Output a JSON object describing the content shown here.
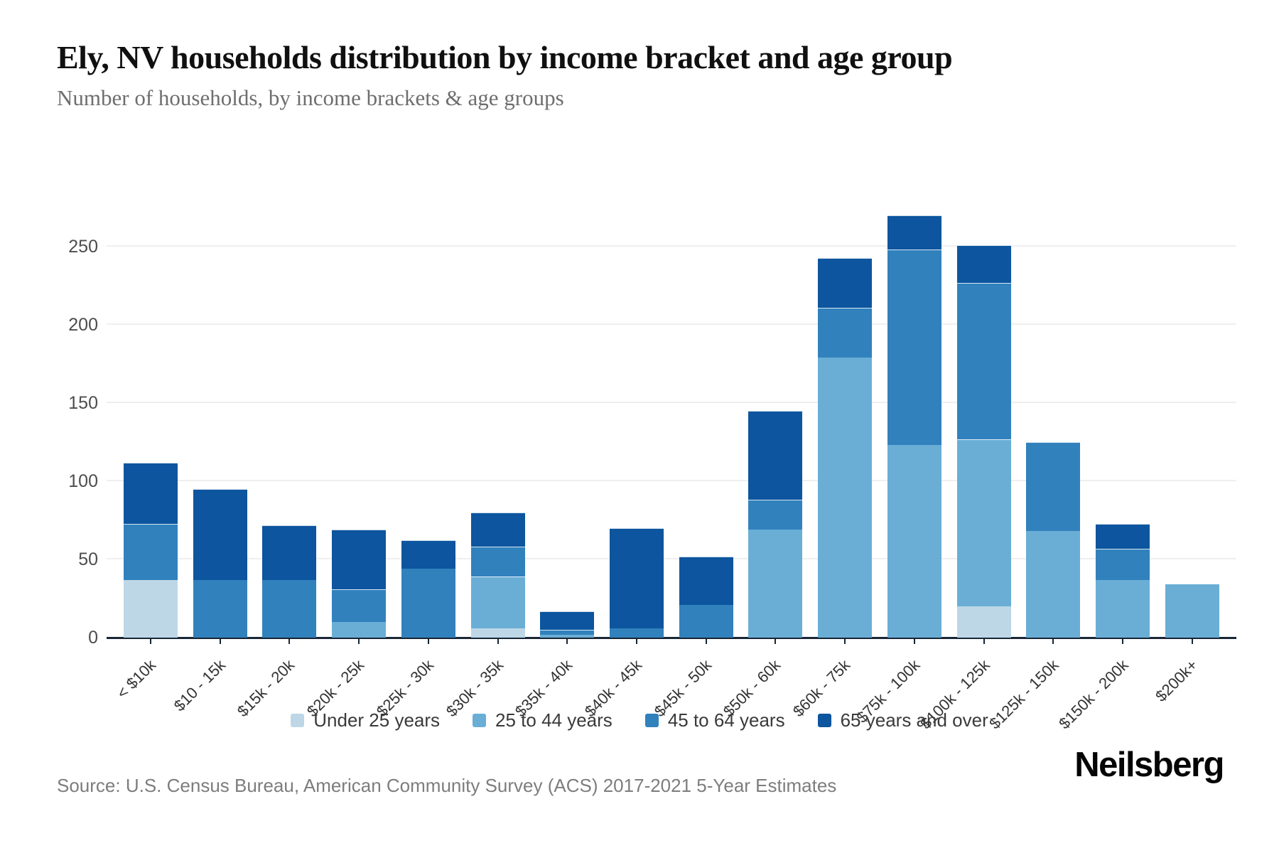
{
  "header": {
    "title": "Ely, NV households distribution by income bracket and age group",
    "subtitle": "Number of households, by income brackets & age groups"
  },
  "footer": {
    "source": "Source: U.S. Census Bureau, American Community Survey (ACS) 2017-2021 5-Year Estimates",
    "logo": "Neilsberg"
  },
  "colors": {
    "under_25": "#bdd7e6",
    "age_25_44": "#6aaed6",
    "age_45_64": "#3181bd",
    "age_65_over": "#0d559e",
    "axis": "#182635",
    "gridline": "#efefef"
  },
  "chart_data": {
    "type": "bar",
    "stacked": true,
    "title": "Ely, NV households distribution by income bracket and age group",
    "xlabel": "",
    "ylabel": "Number of households",
    "ylim": [
      0,
      300
    ],
    "yticks": [
      0,
      50,
      100,
      150,
      200,
      250
    ],
    "grid": true,
    "legend_position": "bottom",
    "categories": [
      "< $10k",
      "$10 - 15k",
      "$15k - 20k",
      "$20k - 25k",
      "$25k - 30k",
      "$30k - 35k",
      "$35k - 40k",
      "$40k - 45k",
      "$45k - 50k",
      "$50k - 60k",
      "$60k - 75k",
      "$75k - 100k",
      "$100k - 125k",
      "$125k - 150k",
      "$150k - 200k",
      "$200k+"
    ],
    "series": [
      {
        "name": "Under 25 years",
        "color": "#bdd7e6",
        "values": [
          37,
          0,
          0,
          0,
          0,
          6,
          0,
          0,
          0,
          0,
          0,
          0,
          20,
          0,
          0,
          0
        ]
      },
      {
        "name": "25 to 44 years",
        "color": "#6aaed6",
        "values": [
          0,
          0,
          0,
          10,
          0,
          33,
          2,
          0,
          0,
          69,
          179,
          123,
          107,
          68,
          37,
          34
        ]
      },
      {
        "name": "45 to 64 years",
        "color": "#3181bd",
        "values": [
          36,
          37,
          37,
          21,
          44,
          19,
          3,
          6,
          21,
          19,
          32,
          125,
          100,
          57,
          20,
          0
        ]
      },
      {
        "name": "65 years and over",
        "color": "#0d559e",
        "values": [
          39,
          58,
          35,
          38,
          18,
          22,
          12,
          64,
          31,
          57,
          32,
          22,
          24,
          0,
          16,
          0
        ]
      }
    ],
    "totals": [
      112,
      95,
      72,
      69,
      62,
      80,
      17,
      70,
      52,
      145,
      243,
      270,
      251,
      125,
      73,
      34
    ]
  }
}
